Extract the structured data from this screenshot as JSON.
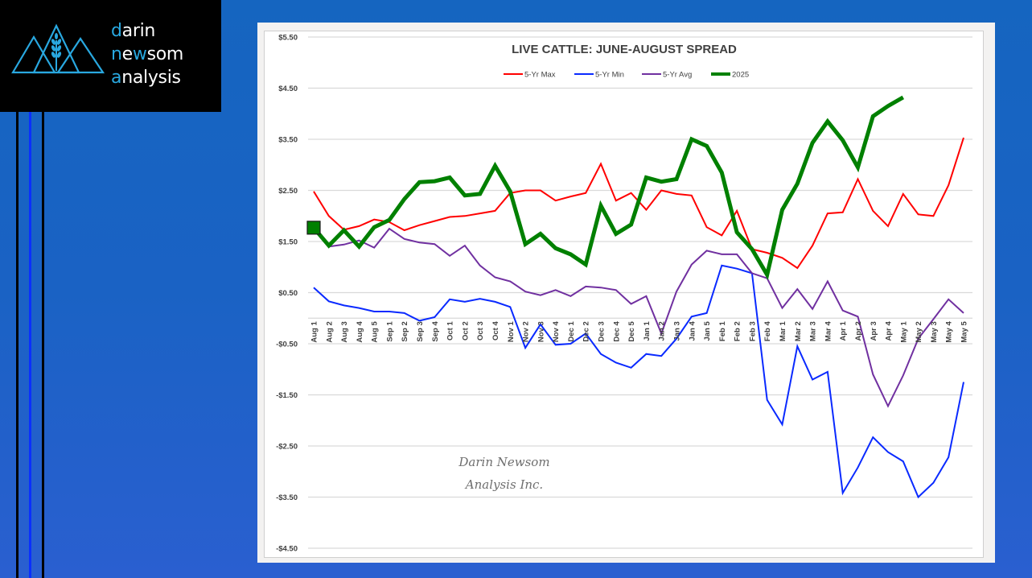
{
  "brand": {
    "lines": [
      {
        "accent": "d",
        "rest": "arin"
      },
      {
        "accent": "n",
        "rest": "e",
        "accent2": "w",
        "rest2": "som"
      },
      {
        "accent": "a",
        "rest": "nalysis"
      }
    ],
    "accent_color": "#29a8e0",
    "icon": "mountains-wheat-icon"
  },
  "watermark": {
    "line1": "Darin Newsom",
    "line2": "Analysis Inc."
  },
  "chart_data": {
    "type": "line",
    "title": "LIVE CATTLE: JUNE-AUGUST SPREAD",
    "xlabel": "",
    "ylabel": "",
    "ylim": [
      -4.5,
      5.5
    ],
    "yticks": [
      5.5,
      4.5,
      3.5,
      2.5,
      1.5,
      0.5,
      -0.5,
      -1.5,
      -2.5,
      -3.5,
      -4.5
    ],
    "ytick_labels": [
      "$5.50",
      "$4.50",
      "$3.50",
      "$2.50",
      "$1.50",
      "$0.50",
      "-$0.50",
      "-$1.50",
      "-$2.50",
      "-$3.50",
      "-$4.50"
    ],
    "grid": true,
    "legend_position": "top-center",
    "categories": [
      "Aug 1",
      "Aug 2",
      "Aug 3",
      "Aug 4",
      "Aug 5",
      "Sep 1",
      "Sep 2",
      "Sep 3",
      "Sep 4",
      "Oct 1",
      "Oct 2",
      "Oct 3",
      "Oct 4",
      "Nov 1",
      "Nov 2",
      "Nov 3",
      "Nov 4",
      "Dec 1",
      "Dec 2",
      "Dec 3",
      "Dec 4",
      "Dec 5",
      "Jan 1",
      "Jan 2",
      "Jan 3",
      "Jan 4",
      "Jan 5",
      "Feb 1",
      "Feb 2",
      "Feb 3",
      "Feb 4",
      "Mar 1",
      "Mar 2",
      "Mar 3",
      "Mar 4",
      "Apr 1",
      "Apr 2",
      "Apr 3",
      "Apr 4",
      "May 1",
      "May 2",
      "May 3",
      "May 4",
      "May 5"
    ],
    "series": [
      {
        "name": "5-Yr Max",
        "color": "#ff0000",
        "width": 2,
        "values": [
          2.48,
          2.0,
          1.73,
          1.8,
          1.93,
          1.88,
          1.72,
          1.82,
          1.9,
          1.98,
          2.0,
          2.05,
          2.1,
          2.45,
          2.5,
          2.5,
          2.3,
          2.38,
          2.45,
          3.02,
          2.3,
          2.45,
          2.12,
          2.5,
          2.43,
          2.4,
          1.78,
          1.62,
          2.1,
          1.35,
          1.28,
          1.18,
          0.98,
          1.42,
          2.05,
          2.07,
          2.72,
          2.1,
          1.8,
          2.43,
          2.03,
          2.0,
          2.6,
          3.53
        ]
      },
      {
        "name": "5-Yr Min",
        "color": "#0a2aff",
        "width": 2,
        "values": [
          0.6,
          0.33,
          0.25,
          0.2,
          0.13,
          0.13,
          0.1,
          -0.05,
          0.02,
          0.37,
          0.32,
          0.38,
          0.32,
          0.22,
          -0.58,
          -0.12,
          -0.52,
          -0.5,
          -0.3,
          -0.7,
          -0.87,
          -0.97,
          -0.7,
          -0.74,
          -0.4,
          0.03,
          0.1,
          1.03,
          0.97,
          0.88,
          -1.6,
          -2.08,
          -0.55,
          -1.2,
          -1.05,
          -3.42,
          -2.92,
          -2.33,
          -2.62,
          -2.8,
          -3.5,
          -3.22,
          -2.72,
          -1.25
        ]
      },
      {
        "name": "5-Yr Avg",
        "color": "#7030a0",
        "width": 2,
        "values": [
          1.73,
          1.4,
          1.44,
          1.52,
          1.38,
          1.75,
          1.55,
          1.48,
          1.45,
          1.22,
          1.42,
          1.03,
          0.8,
          0.72,
          0.52,
          0.45,
          0.55,
          0.43,
          0.62,
          0.6,
          0.55,
          0.28,
          0.43,
          -0.3,
          0.52,
          1.05,
          1.32,
          1.25,
          1.25,
          0.88,
          0.78,
          0.2,
          0.57,
          0.18,
          0.72,
          0.15,
          0.03,
          -1.1,
          -1.72,
          -1.12,
          -0.4,
          -0.02,
          0.37,
          0.1
        ]
      },
      {
        "name": "2025",
        "color": "#008000",
        "width": 5,
        "values": [
          1.77,
          1.42,
          1.72,
          1.4,
          1.78,
          1.92,
          2.33,
          2.66,
          2.68,
          2.75,
          2.4,
          2.43,
          2.98,
          2.48,
          1.45,
          1.65,
          1.37,
          1.25,
          1.05,
          2.2,
          1.65,
          1.83,
          2.75,
          2.67,
          2.72,
          3.5,
          3.37,
          2.85,
          1.68,
          1.35,
          0.85,
          2.12,
          2.63,
          3.43,
          3.85,
          3.48,
          2.95,
          3.95,
          4.15,
          4.32,
          null,
          null,
          null,
          null
        ]
      }
    ],
    "start_marker": {
      "series": "2025",
      "category": "Aug 1",
      "shape": "square"
    }
  }
}
